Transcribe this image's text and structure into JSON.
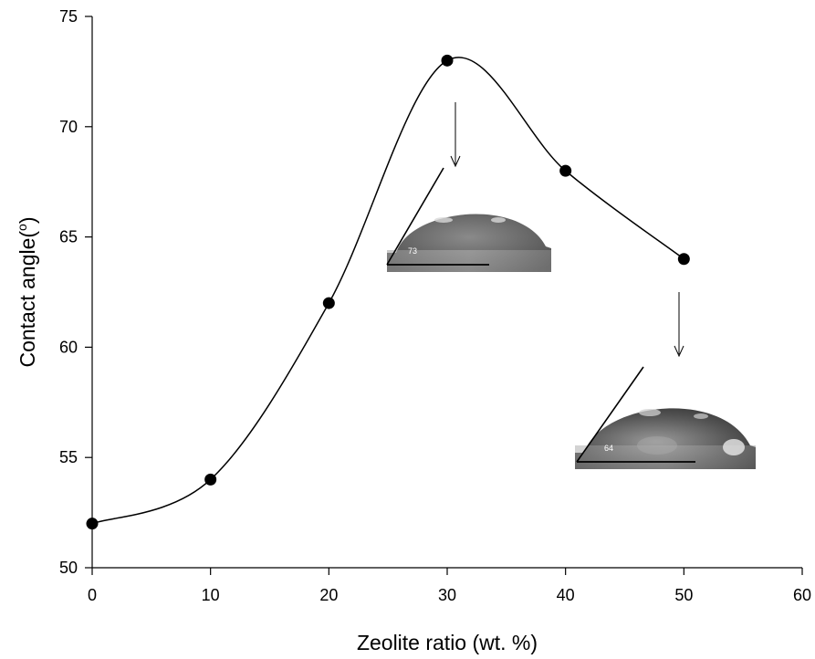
{
  "chart_data": {
    "type": "scatter",
    "title": "",
    "xlabel": "Zeolite ratio (wt. %)",
    "ylabel_main": "Contact angle(",
    "ylabel_sup": "o",
    "ylabel_end": ")",
    "xlim": [
      0,
      60
    ],
    "ylim": [
      50,
      75
    ],
    "xticks": [
      0,
      10,
      20,
      30,
      40,
      50,
      60
    ],
    "yticks": [
      50,
      55,
      60,
      65,
      70,
      75
    ],
    "grid": false,
    "series": [
      {
        "x": [
          0,
          10,
          20,
          30,
          40,
          50
        ],
        "y": [
          52,
          54,
          62,
          73,
          68,
          64
        ],
        "marker": "filled-circle",
        "line": "smooth-curve",
        "color": "#000000"
      }
    ],
    "insets": [
      {
        "label": "73",
        "points_to_x": 30
      },
      {
        "label": "64",
        "points_to_x": 50
      }
    ]
  }
}
